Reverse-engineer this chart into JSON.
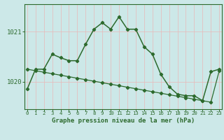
{
  "hours": [
    0,
    1,
    2,
    3,
    4,
    5,
    6,
    7,
    8,
    9,
    10,
    11,
    12,
    13,
    14,
    15,
    16,
    17,
    18,
    19,
    20,
    21,
    22,
    23
  ],
  "pressure_main": [
    1019.85,
    1020.25,
    1020.25,
    1020.55,
    1020.48,
    1020.42,
    1020.42,
    1020.75,
    1021.05,
    1021.18,
    1021.05,
    1021.3,
    1021.05,
    1021.05,
    1020.7,
    1020.55,
    1020.15,
    1019.9,
    1019.75,
    1019.72,
    1019.72,
    1019.62,
    1020.2,
    1020.25
  ],
  "pressure_trend": [
    1020.25,
    1020.22,
    1020.19,
    1020.16,
    1020.13,
    1020.1,
    1020.07,
    1020.04,
    1020.01,
    1019.98,
    1019.95,
    1019.92,
    1019.89,
    1019.86,
    1019.83,
    1019.8,
    1019.77,
    1019.74,
    1019.71,
    1019.68,
    1019.65,
    1019.62,
    1019.59,
    1020.22
  ],
  "line_color": "#2d6a2d",
  "bg_color": "#cce8e8",
  "grid_v_color": "#e8b8b8",
  "grid_h_color": "#e8b8b8",
  "ylabel_ticks": [
    1020,
    1021
  ],
  "ylim_min": 1019.45,
  "ylim_max": 1021.55,
  "xlim_min": -0.3,
  "xlim_max": 23.3,
  "xlabel": "Graphe pression niveau de la mer (hPa)",
  "marker": "D",
  "markersize": 2.2,
  "linewidth_main": 1.1,
  "linewidth_trend": 0.9,
  "xlabel_fontsize": 6.5,
  "ytick_fontsize": 6.5,
  "xtick_fontsize": 5.2
}
